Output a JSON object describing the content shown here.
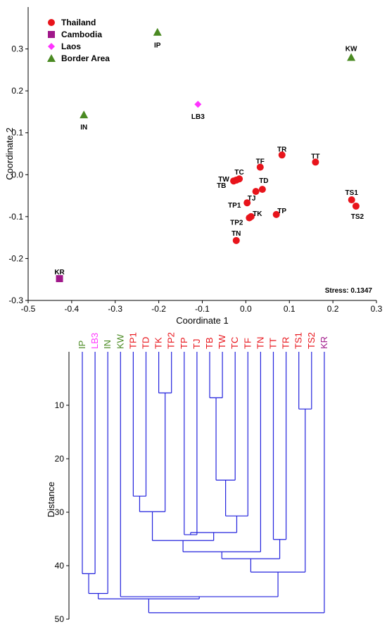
{
  "chart_data": [
    {
      "type": "scatter",
      "title": "",
      "xlabel": "Coordinate 1",
      "ylabel": "Coordinate 2",
      "xlim": [
        -0.5,
        0.3
      ],
      "ylim": [
        -0.3,
        0.4
      ],
      "xticks": [
        "-0.5",
        "-0.4",
        "-0.3",
        "-0.2",
        "-0.1",
        "0.0",
        "0.1",
        "0.2",
        "0.3"
      ],
      "yticks": [
        "-0.3",
        "-0.2",
        "-0.1",
        "0.0",
        "0.1",
        "0.2",
        "0.3"
      ],
      "xtick_values": [
        -0.5,
        -0.4,
        -0.3,
        -0.2,
        -0.1,
        0.0,
        0.1,
        0.2,
        0.3
      ],
      "ytick_values": [
        -0.3,
        -0.2,
        -0.1,
        0.0,
        0.1,
        0.2,
        0.3
      ],
      "legend_position": "top-left",
      "annotation": "Stress: 0.1347",
      "series": [
        {
          "name": "Thailand",
          "marker": "circle",
          "color": "#e8141b",
          "points": [
            {
              "label": "TR",
              "x": 0.083,
              "y": 0.047
            },
            {
              "label": "TT",
              "x": 0.16,
              "y": 0.03
            },
            {
              "label": "TF",
              "x": 0.033,
              "y": 0.018
            },
            {
              "label": "TC",
              "x": -0.015,
              "y": -0.01
            },
            {
              "label": "TW",
              "x": -0.028,
              "y": -0.015
            },
            {
              "label": "TB",
              "x": -0.022,
              "y": -0.013
            },
            {
              "label": "TJ",
              "x": 0.023,
              "y": -0.04
            },
            {
              "label": "TD",
              "x": 0.038,
              "y": -0.035
            },
            {
              "label": "TP1",
              "x": 0.003,
              "y": -0.067
            },
            {
              "label": "TK",
              "x": 0.012,
              "y": -0.1
            },
            {
              "label": "TP2",
              "x": 0.008,
              "y": -0.103
            },
            {
              "label": "TP",
              "x": 0.07,
              "y": -0.095
            },
            {
              "label": "TN",
              "x": -0.022,
              "y": -0.157
            },
            {
              "label": "TS1",
              "x": 0.243,
              "y": -0.06
            },
            {
              "label": "TS2",
              "x": 0.253,
              "y": -0.075
            }
          ]
        },
        {
          "name": "Cambodia",
          "marker": "square",
          "color": "#a0188a",
          "points": [
            {
              "label": "KR",
              "x": -0.428,
              "y": -0.248
            }
          ]
        },
        {
          "name": "Laos",
          "marker": "diamond",
          "color": "#ff33ff",
          "points": [
            {
              "label": "LB3",
              "x": -0.11,
              "y": 0.168
            }
          ]
        },
        {
          "name": "Border Area",
          "marker": "triangle",
          "color": "#4a8a22",
          "points": [
            {
              "label": "IP",
              "x": -0.203,
              "y": 0.34
            },
            {
              "label": "KW",
              "x": 0.242,
              "y": 0.28
            },
            {
              "label": "IN",
              "x": -0.372,
              "y": 0.143
            }
          ]
        }
      ]
    },
    {
      "type": "dendrogram",
      "title": "",
      "ylabel": "Distance",
      "ylim": [
        0,
        50
      ],
      "yticks": [
        "10",
        "20",
        "30",
        "40",
        "50"
      ],
      "ytick_values": [
        10,
        20,
        30,
        40,
        50
      ],
      "leaves": [
        {
          "label": "IP",
          "color": "#4a8a22"
        },
        {
          "label": "LB3",
          "color": "#ff33ff"
        },
        {
          "label": "IN",
          "color": "#4a8a22"
        },
        {
          "label": "KW",
          "color": "#4a8a22"
        },
        {
          "label": "TP1",
          "color": "#e8141b"
        },
        {
          "label": "TD",
          "color": "#e8141b"
        },
        {
          "label": "TK",
          "color": "#e8141b"
        },
        {
          "label": "TP2",
          "color": "#e8141b"
        },
        {
          "label": "TP",
          "color": "#e8141b"
        },
        {
          "label": "TJ",
          "color": "#e8141b"
        },
        {
          "label": "TB",
          "color": "#e8141b"
        },
        {
          "label": "TW",
          "color": "#e8141b"
        },
        {
          "label": "TC",
          "color": "#e8141b"
        },
        {
          "label": "TF",
          "color": "#e8141b"
        },
        {
          "label": "TN",
          "color": "#e8141b"
        },
        {
          "label": "TT",
          "color": "#e8141b"
        },
        {
          "label": "TR",
          "color": "#e8141b"
        },
        {
          "label": "TS1",
          "color": "#e8141b"
        },
        {
          "label": "TS2",
          "color": "#e8141b"
        },
        {
          "label": "KR",
          "color": "#a0188a"
        }
      ],
      "merges": [
        {
          "id": "c1",
          "a": "TK",
          "b": "TP2",
          "height": 7.7
        },
        {
          "id": "c2",
          "a": "TB",
          "b": "TW",
          "height": 8.6
        },
        {
          "id": "c3",
          "a": "TS1",
          "b": "TS2",
          "height": 10.7
        },
        {
          "id": "c4",
          "a": "c2",
          "b": "TC",
          "height": 24.0
        },
        {
          "id": "c5",
          "a": "TP1",
          "b": "TD",
          "height": 27.0
        },
        {
          "id": "c6",
          "a": "c5",
          "b": "c1",
          "height": 29.9
        },
        {
          "id": "c7",
          "a": "c4",
          "b": "TF",
          "height": 30.7
        },
        {
          "id": "c8",
          "a": "TP",
          "b": "TJ",
          "height": 34.2
        },
        {
          "id": "c9",
          "a": "c8",
          "b": "c7",
          "height": 33.8
        },
        {
          "id": "c10",
          "a": "c6",
          "b": "c9",
          "height": 35.3
        },
        {
          "id": "c11",
          "a": "TT",
          "b": "TR",
          "height": 35.1
        },
        {
          "id": "c12",
          "a": "c10",
          "b": "TN",
          "height": 37.4
        },
        {
          "id": "c13",
          "a": "c12",
          "b": "c11",
          "height": 38.7
        },
        {
          "id": "c14",
          "a": "c13",
          "b": "c3",
          "height": 41.2
        },
        {
          "id": "c15",
          "a": "IP",
          "b": "LB3",
          "height": 41.5
        },
        {
          "id": "c16",
          "a": "c15",
          "b": "IN",
          "height": 45.2
        },
        {
          "id": "c17",
          "a": "KW",
          "b": "c14",
          "height": 45.8
        },
        {
          "id": "c18",
          "a": "c16",
          "b": "c17",
          "height": 46.2
        },
        {
          "id": "c19",
          "a": "c18",
          "b": "KR",
          "height": 48.8
        }
      ]
    }
  ]
}
